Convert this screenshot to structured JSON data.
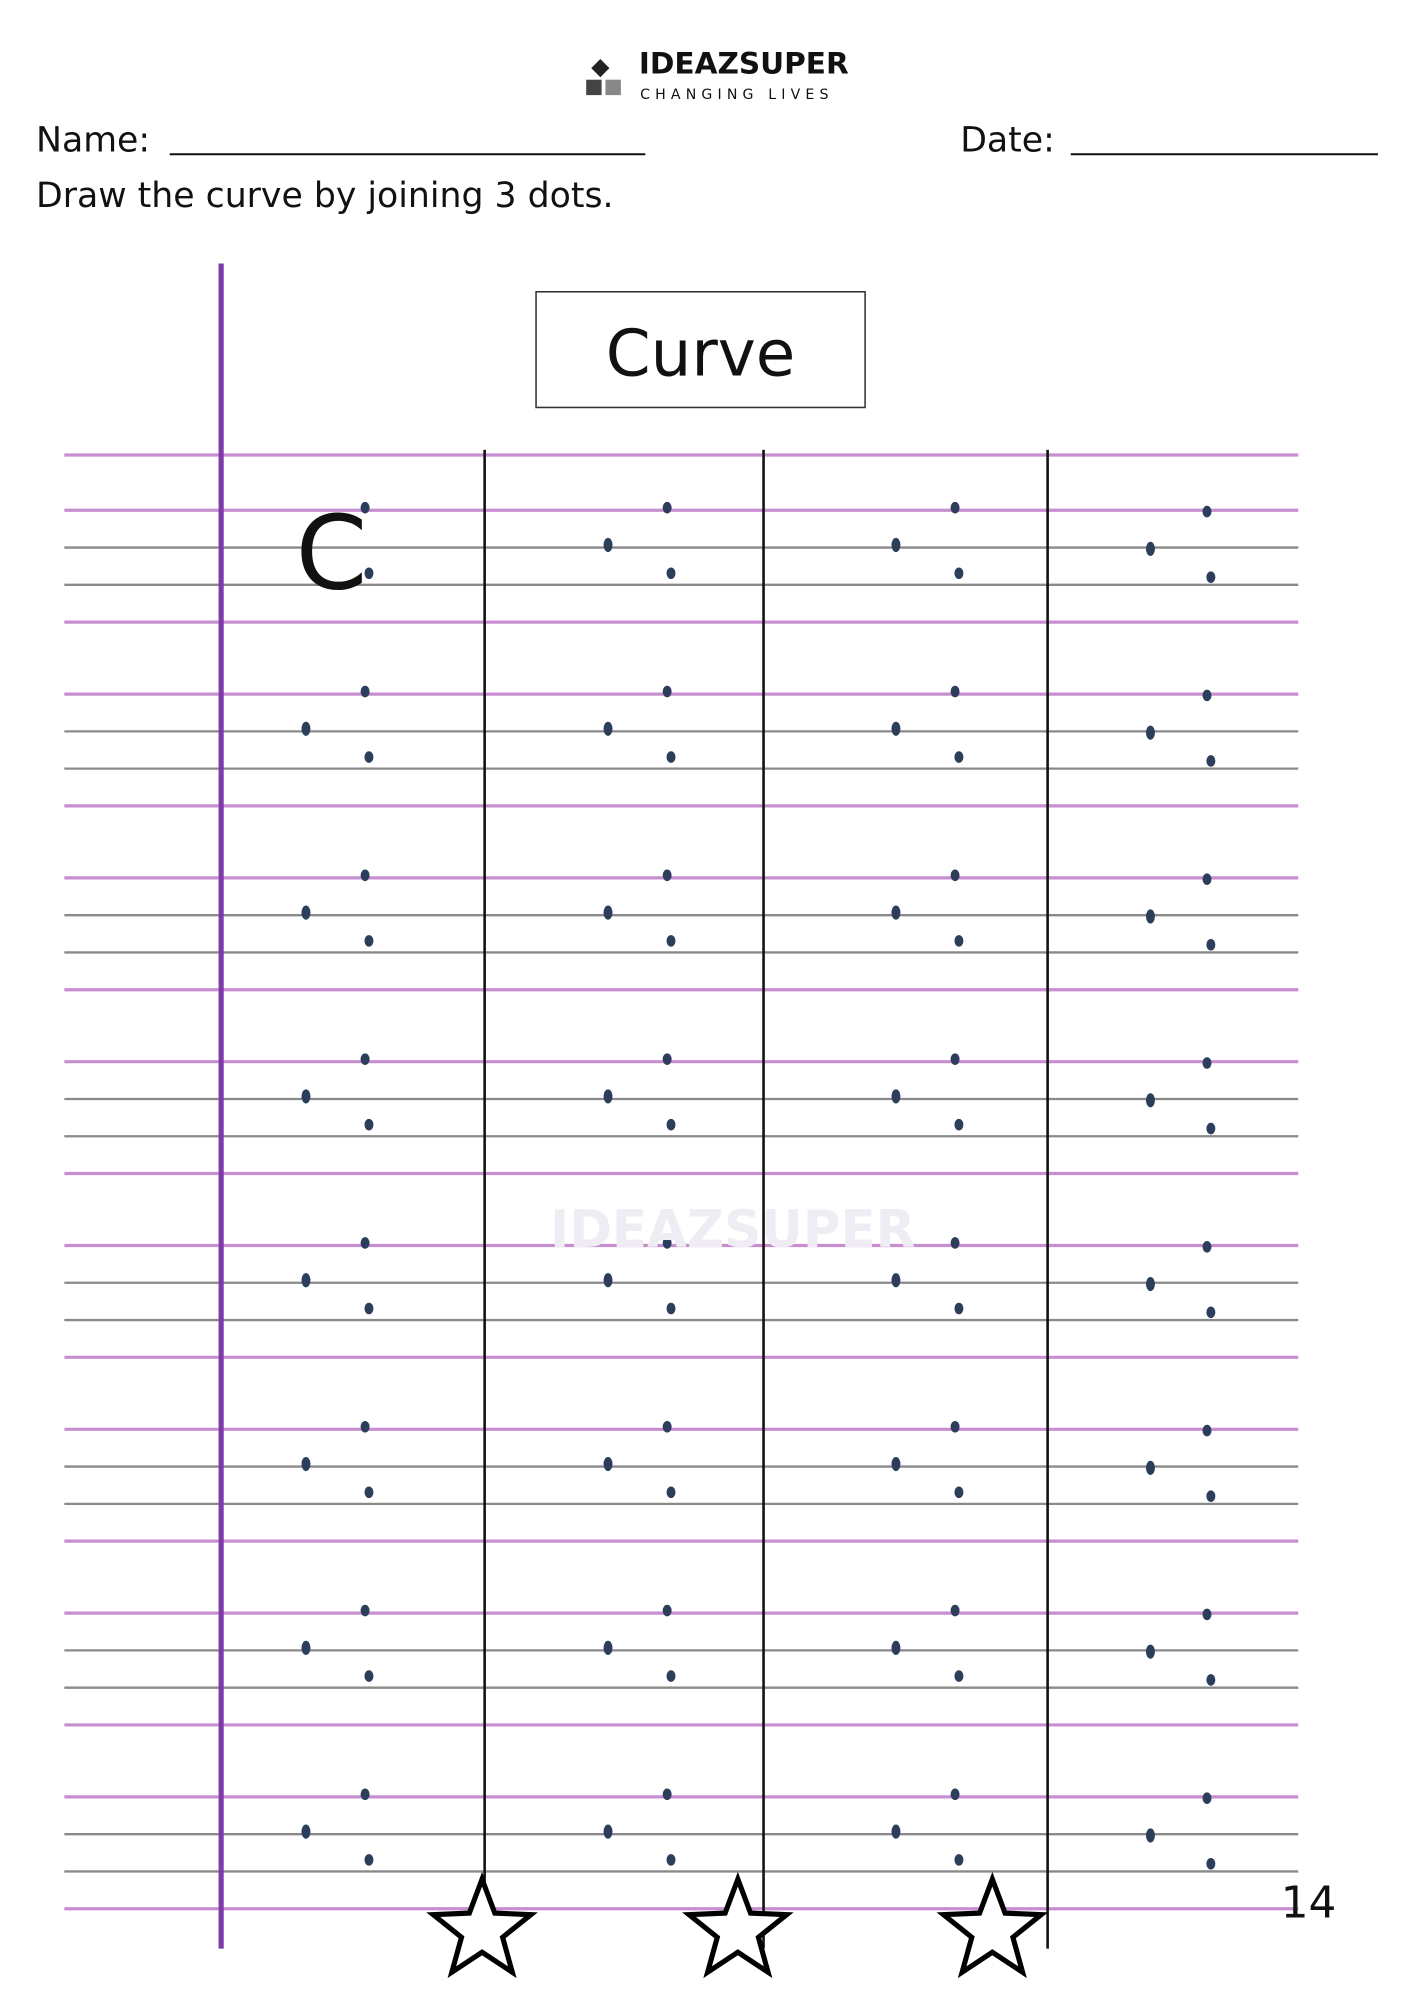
{
  "header": {
    "logo_name": "IDEAZSUPER",
    "logo_tagline": "CHANGING LIVES",
    "name_label": "Name:",
    "date_label": "Date:",
    "instruction": "Draw the curve by joining 3 dots."
  },
  "worksheet": {
    "title": "Curve",
    "example_letter": "C",
    "watermark": "IDEAZSUPER",
    "page_number": "14"
  }
}
